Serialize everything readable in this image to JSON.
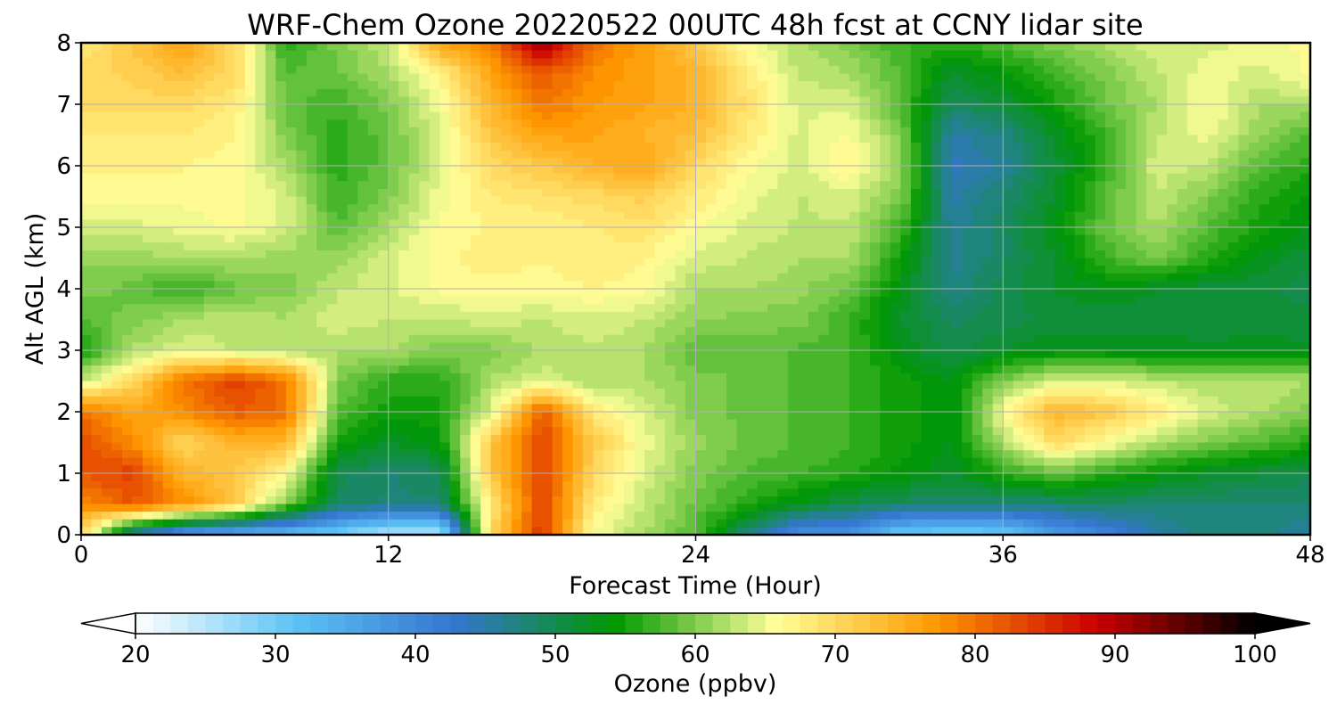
{
  "chart_data": {
    "type": "heatmap",
    "title": "WRF-Chem Ozone  20220522 00UTC 48h fcst at CCNY lidar site",
    "xlabel": "Forecast Time (Hour)",
    "ylabel": "Alt AGL (km)",
    "xlim": [
      0,
      48
    ],
    "ylim": [
      0,
      8
    ],
    "x_ticks": [
      0,
      12,
      24,
      36,
      48
    ],
    "y_ticks": [
      0,
      1,
      2,
      3,
      4,
      5,
      6,
      7,
      8
    ],
    "grid": true,
    "x": [
      0,
      2,
      4,
      6,
      8,
      10,
      12,
      14,
      16,
      18,
      20,
      22,
      24,
      26,
      28,
      30,
      32,
      34,
      36,
      38,
      40,
      42,
      44,
      46,
      48
    ],
    "y": [
      0,
      0.5,
      1,
      1.5,
      2,
      2.5,
      3,
      3.5,
      4,
      4.5,
      5,
      5.5,
      6,
      6.5,
      7,
      7.5,
      8
    ],
    "values": [
      [
        70,
        45,
        35,
        33,
        32,
        29,
        24,
        24,
        70,
        85,
        65,
        62,
        58,
        47,
        38,
        38,
        30,
        29,
        30,
        37,
        40,
        45,
        48,
        48,
        45
      ],
      [
        78,
        82,
        78,
        72,
        60,
        49,
        48,
        48,
        68,
        84,
        68,
        63,
        59,
        56,
        53,
        50,
        49,
        48,
        48,
        48,
        49,
        48,
        48,
        48,
        48
      ],
      [
        82,
        84,
        74,
        72,
        66,
        50,
        48,
        49,
        72,
        84,
        70,
        64,
        60,
        58,
        57,
        56,
        54,
        52,
        56,
        59,
        56,
        54,
        52,
        51,
        50
      ],
      [
        83,
        78,
        70,
        74,
        74,
        55,
        52,
        54,
        72,
        84,
        72,
        65,
        61,
        59,
        58,
        57,
        55,
        53,
        62,
        70,
        66,
        62,
        60,
        58,
        56
      ],
      [
        80,
        76,
        78,
        82,
        80,
        58,
        55,
        55,
        64,
        82,
        68,
        64,
        60,
        59,
        58,
        57,
        55,
        53,
        66,
        74,
        72,
        68,
        64,
        62,
        60
      ],
      [
        63,
        70,
        80,
        84,
        80,
        60,
        56,
        56,
        62,
        64,
        62,
        62,
        60,
        59,
        58,
        57,
        55,
        53,
        60,
        64,
        64,
        63,
        62,
        63,
        62
      ],
      [
        55,
        62,
        64,
        63,
        62,
        62,
        62,
        60,
        60,
        62,
        63,
        62,
        58,
        59,
        58,
        57,
        53,
        50,
        52,
        53,
        53,
        53,
        52,
        53,
        52
      ],
      [
        58,
        60,
        62,
        63,
        62,
        64,
        63,
        63,
        64,
        63,
        64,
        63,
        61,
        60,
        60,
        57,
        52,
        49,
        50,
        51,
        51,
        51,
        51,
        51,
        51
      ],
      [
        60,
        59,
        56,
        59,
        60,
        63,
        64,
        66,
        66,
        66,
        67,
        66,
        62,
        62,
        61,
        59,
        53,
        47,
        50,
        52,
        53,
        52,
        51,
        51,
        50
      ],
      [
        61,
        61,
        62,
        62,
        61,
        61,
        64,
        66,
        68,
        67,
        68,
        67,
        64,
        63,
        62,
        62,
        55,
        46,
        49,
        52,
        57,
        60,
        56,
        53,
        51
      ],
      [
        64,
        64,
        65,
        66,
        64,
        58,
        62,
        66,
        67,
        67,
        68,
        69,
        66,
        64,
        63,
        63,
        57,
        46,
        49,
        53,
        59,
        62,
        58,
        55,
        53
      ],
      [
        66,
        66,
        66,
        66,
        64,
        57,
        60,
        65,
        68,
        69,
        70,
        71,
        68,
        65,
        63,
        64,
        60,
        45,
        48,
        52,
        58,
        63,
        60,
        56,
        54
      ],
      [
        67,
        67,
        67,
        66,
        62,
        56,
        59,
        64,
        70,
        72,
        74,
        76,
        70,
        66,
        64,
        67,
        61,
        44,
        46,
        51,
        57,
        64,
        63,
        58,
        56
      ],
      [
        68,
        68,
        68,
        67,
        60,
        56,
        59,
        64,
        72,
        76,
        76,
        74,
        73,
        68,
        64,
        66,
        60,
        45,
        47,
        52,
        57,
        63,
        65,
        61,
        58
      ],
      [
        70,
        70,
        70,
        68,
        59,
        57,
        60,
        65,
        74,
        80,
        77,
        76,
        74,
        69,
        64,
        64,
        58,
        49,
        51,
        55,
        59,
        62,
        66,
        62,
        62
      ],
      [
        70,
        71,
        73,
        70,
        58,
        59,
        62,
        67,
        76,
        82,
        78,
        76,
        74,
        68,
        63,
        62,
        58,
        52,
        54,
        57,
        60,
        63,
        65,
        64,
        66
      ],
      [
        68,
        72,
        76,
        70,
        56,
        60,
        63,
        76,
        79,
        92,
        80,
        76,
        72,
        66,
        62,
        60,
        57,
        56,
        58,
        60,
        62,
        64,
        64,
        65,
        66
      ]
    ],
    "colorbar": {
      "label": "Ozone  (ppbv)",
      "range": [
        20,
        100
      ],
      "ticks": [
        20,
        30,
        40,
        50,
        60,
        70,
        80,
        90,
        100
      ],
      "extend": "both",
      "colors": [
        "#ffffff",
        "#5bc3f5",
        "#3575d1",
        "#009900",
        "#ffff99",
        "#ff9900",
        "#cc0000",
        "#000000"
      ]
    }
  }
}
